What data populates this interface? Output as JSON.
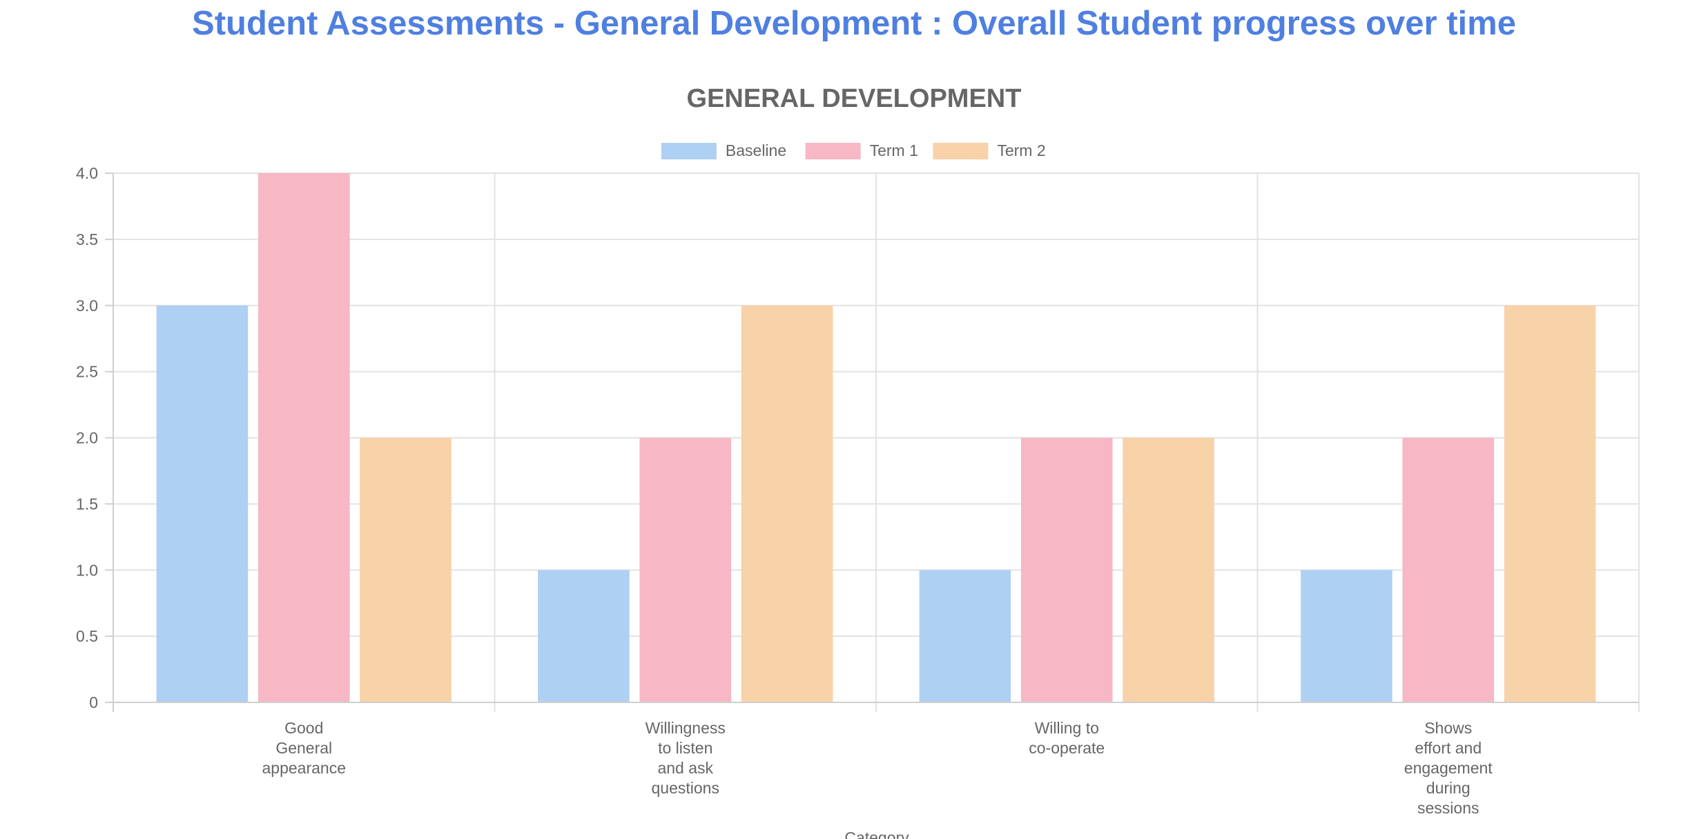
{
  "page": {
    "title": "Student Assessments - General Development : Overall Student progress over time"
  },
  "chart_data": {
    "type": "bar",
    "title": "GENERAL DEVELOPMENT",
    "xlabel": "Category",
    "ylabel": "",
    "ylim": [
      0,
      4.0
    ],
    "ytick_step": 0.5,
    "grid": true,
    "legend_position": "top",
    "categories": [
      [
        "Good",
        "General",
        "appearance"
      ],
      [
        "Willingness",
        "to listen",
        "and ask",
        "questions"
      ],
      [
        "Willing to",
        "co-operate"
      ],
      [
        "Shows",
        "effort and",
        "engagement",
        "during",
        "sessions"
      ]
    ],
    "series": [
      {
        "name": "Baseline",
        "color": "#aed0f3",
        "values": [
          3,
          1,
          1,
          1
        ]
      },
      {
        "name": "Term 1",
        "color": "#f7b7c5",
        "values": [
          4,
          2,
          2,
          2
        ]
      },
      {
        "name": "Term 2",
        "color": "#f8d2a8",
        "values": [
          2,
          3,
          2,
          3
        ]
      }
    ]
  }
}
